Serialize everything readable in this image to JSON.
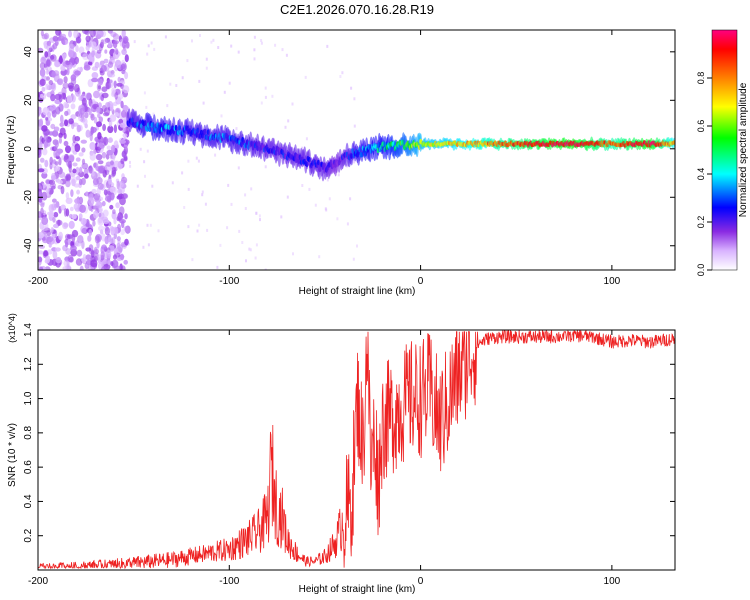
{
  "title": "C2E1.2026.070.16.28.R19",
  "chart_data": [
    {
      "type": "heatmap",
      "title": "C2E1.2026.070.16.28.R19",
      "xlabel": "Height of straight line (km)",
      "ylabel": "Frequency (Hz)",
      "xlim": [
        -200,
        133
      ],
      "ylim": [
        -50,
        49
      ],
      "xticks": [
        -200,
        -100,
        0,
        100
      ],
      "xtick_labels": [
        "-200",
        "-100",
        "0",
        "100"
      ],
      "yticks": [
        -40,
        -20,
        0,
        20,
        40
      ],
      "ytick_labels": [
        "-40",
        "-20",
        "0",
        "20",
        "40"
      ],
      "colorbar": {
        "label": "Normalized spectral amplitude",
        "range": [
          0,
          1
        ],
        "ticks": [
          0.0,
          0.2,
          0.4,
          0.6,
          0.8
        ],
        "tick_labels": [
          "0.0",
          "0.2",
          "0.4",
          "0.6",
          "0.8"
        ],
        "colormap": [
          "#ffffff",
          "#d9b3ff",
          "#8a2be2",
          "#0000ff",
          "#00ffff",
          "#00ff00",
          "#ffff00",
          "#ff8000",
          "#ff0000",
          "#ff0080"
        ]
      },
      "features": {
        "noise_region_x": [
          -200,
          -153
        ],
        "ridge": {
          "x": [
            -153,
            -140,
            -120,
            -100,
            -80,
            -60,
            -50,
            -45,
            -40,
            -30,
            -20,
            -10,
            0,
            20,
            40,
            60,
            80,
            100,
            120,
            133
          ],
          "y": [
            11,
            9,
            7,
            4,
            0,
            -5,
            -8,
            -6,
            -3,
            -1,
            1,
            1.5,
            2,
            2,
            2,
            2,
            2,
            2,
            2,
            2
          ],
          "amplitude": [
            0.3,
            0.4,
            0.35,
            0.35,
            0.3,
            0.3,
            0.3,
            0.25,
            0.3,
            0.4,
            0.45,
            0.55,
            0.65,
            0.7,
            0.8,
            0.9,
            0.95,
            0.8,
            0.95,
            0.7
          ]
        }
      }
    },
    {
      "type": "line",
      "xlabel": "Height of straight line (km)",
      "ylabel": "SNR (10 * v/v)",
      "y_multiplier": "(x10^4)",
      "xlim": [
        -200,
        133
      ],
      "ylim": [
        0,
        1.4
      ],
      "xticks": [
        -200,
        -100,
        0,
        100
      ],
      "xtick_labels": [
        "-200",
        "-100",
        "0",
        "100"
      ],
      "yticks": [
        0.2,
        0.4,
        0.6,
        0.8,
        1.0,
        1.2,
        1.4
      ],
      "ytick_labels": [
        "0.2",
        "0.4",
        "0.6",
        "0.8",
        "1.0",
        "1.2",
        "1.4"
      ],
      "color": "#ee2222",
      "series": [
        {
          "name": "SNR",
          "x": [
            -200,
            -180,
            -160,
            -150,
            -140,
            -130,
            -120,
            -110,
            -100,
            -95,
            -90,
            -85,
            -80,
            -78,
            -75,
            -72,
            -70,
            -65,
            -60,
            -55,
            -50,
            -45,
            -40,
            -36,
            -33,
            -30,
            -28,
            -26,
            -24,
            -22,
            -20,
            -15,
            -10,
            -5,
            0,
            5,
            10,
            15,
            20,
            25,
            30,
            35,
            40,
            50,
            60,
            70,
            80,
            90,
            100,
            110,
            120,
            133
          ],
          "y": [
            0.02,
            0.02,
            0.03,
            0.04,
            0.05,
            0.06,
            0.08,
            0.1,
            0.12,
            0.15,
            0.18,
            0.22,
            0.3,
            0.6,
            0.35,
            0.3,
            0.18,
            0.1,
            0.05,
            0.05,
            0.08,
            0.15,
            0.3,
            0.4,
            1.0,
            0.7,
            1.38,
            0.6,
            0.8,
            0.5,
            0.85,
            0.9,
            0.95,
            1.0,
            1.0,
            1.05,
            0.85,
            1.0,
            1.15,
            1.25,
            1.32,
            1.35,
            1.36,
            1.36,
            1.36,
            1.36,
            1.37,
            1.36,
            1.33,
            1.34,
            1.33,
            1.35
          ]
        }
      ]
    }
  ]
}
